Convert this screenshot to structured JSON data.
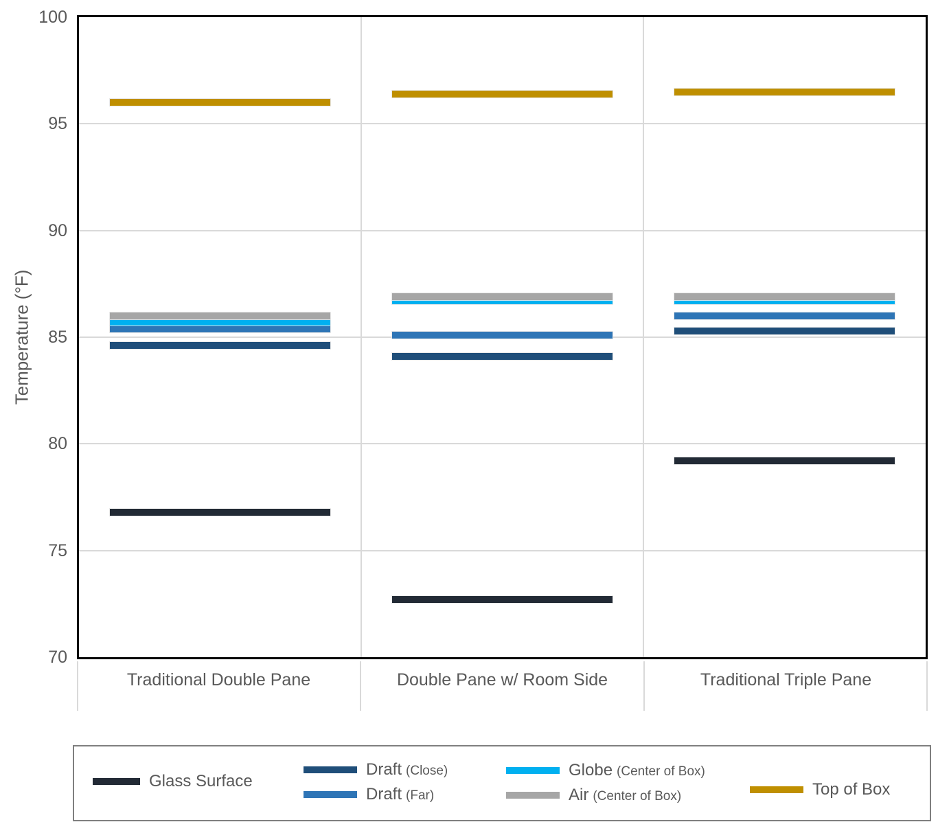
{
  "chart_data": {
    "type": "scatter",
    "marker": "horizontal-line-segment",
    "title": "",
    "xlabel": "",
    "ylabel": "Temperature (°F)",
    "categories": [
      "Traditional Double Pane",
      "Double Pane w/ Room Side",
      "Traditional Triple Pane"
    ],
    "series": [
      {
        "name": "Glass Surface",
        "color": "#222A35",
        "values": [
          76.8,
          72.7,
          79.2
        ]
      },
      {
        "name": "Draft (Close)",
        "color": "#1F4E79",
        "values": [
          84.6,
          84.1,
          85.3
        ]
      },
      {
        "name": "Draft (Far)",
        "color": "#2E75B6",
        "values": [
          85.4,
          85.1,
          86.0
        ]
      },
      {
        "name": "Globe (Center of Box)",
        "color": "#00B0F0",
        "values": [
          85.7,
          86.7,
          86.7
        ]
      },
      {
        "name": "Air (Center of Box)",
        "color": "#A6A6A6",
        "values": [
          86.0,
          86.9,
          86.9
        ]
      },
      {
        "name": "Top of Box",
        "color": "#BF8F00",
        "values": [
          96.0,
          96.4,
          96.5
        ]
      }
    ],
    "ylim": [
      70,
      100
    ],
    "yticks": [
      70,
      75,
      80,
      85,
      90,
      95,
      100
    ],
    "grid": true,
    "legend_position": "bottom"
  },
  "legend": {
    "items": [
      {
        "label": "Glass Surface",
        "sublabel": "",
        "color": "#222A35"
      },
      {
        "label": "Draft",
        "sublabel": "(Close)",
        "color": "#1F4E79"
      },
      {
        "label": "Draft",
        "sublabel": "(Far)",
        "color": "#2E75B6"
      },
      {
        "label": "Globe",
        "sublabel": "(Center of Box)",
        "color": "#00B0F0"
      },
      {
        "label": "Air",
        "sublabel": "(Center of Box)",
        "color": "#A6A6A6"
      },
      {
        "label": "Top of Box",
        "sublabel": "",
        "color": "#BF8F00"
      }
    ]
  },
  "colors": {
    "grid": "#D9D9D9",
    "axis_text": "#595959",
    "plot_border": "#000000",
    "legend_border": "#7F7F7F"
  }
}
